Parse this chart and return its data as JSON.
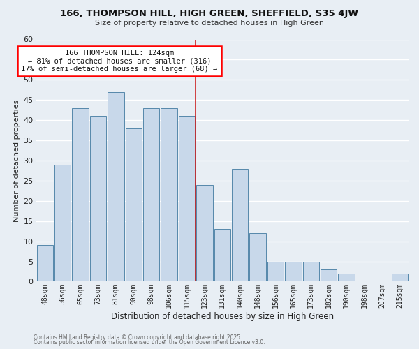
{
  "title": "166, THOMPSON HILL, HIGH GREEN, SHEFFIELD, S35 4JW",
  "subtitle": "Size of property relative to detached houses in High Green",
  "xlabel": "Distribution of detached houses by size in High Green",
  "ylabel": "Number of detached properties",
  "bar_color": "#c8d8ea",
  "bar_edge_color": "#5588aa",
  "categories": [
    "48sqm",
    "56sqm",
    "65sqm",
    "73sqm",
    "81sqm",
    "90sqm",
    "98sqm",
    "106sqm",
    "115sqm",
    "123sqm",
    "131sqm",
    "140sqm",
    "148sqm",
    "156sqm",
    "165sqm",
    "173sqm",
    "182sqm",
    "190sqm",
    "198sqm",
    "207sqm",
    "215sqm"
  ],
  "values": [
    9,
    29,
    43,
    41,
    47,
    38,
    43,
    43,
    41,
    24,
    13,
    28,
    12,
    5,
    5,
    5,
    3,
    2,
    0,
    0,
    2
  ],
  "ylim": [
    0,
    60
  ],
  "yticks": [
    0,
    5,
    10,
    15,
    20,
    25,
    30,
    35,
    40,
    45,
    50,
    55,
    60
  ],
  "vline_color": "#cc2222",
  "annotation_title": "166 THOMPSON HILL: 124sqm",
  "annotation_line1": "← 81% of detached houses are smaller (316)",
  "annotation_line2": "17% of semi-detached houses are larger (68) →",
  "bg_color": "#e8eef4",
  "grid_color": "#ffffff",
  "footer1": "Contains HM Land Registry data © Crown copyright and database right 2025.",
  "footer2": "Contains public sector information licensed under the Open Government Licence v3.0."
}
